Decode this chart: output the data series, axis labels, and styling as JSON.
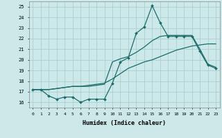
{
  "xlabel": "Humidex (Indice chaleur)",
  "xlim": [
    -0.5,
    23.5
  ],
  "ylim": [
    15.5,
    25.5
  ],
  "xticks": [
    0,
    1,
    2,
    3,
    4,
    5,
    6,
    7,
    8,
    9,
    10,
    11,
    12,
    13,
    14,
    15,
    16,
    17,
    18,
    19,
    20,
    21,
    22,
    23
  ],
  "yticks": [
    16,
    17,
    18,
    19,
    20,
    21,
    22,
    23,
    24,
    25
  ],
  "bg_color": "#cce8e8",
  "grid_color": "#aacece",
  "line_color": "#1a6b6b",
  "series1_x": [
    0,
    1,
    2,
    3,
    4,
    5,
    6,
    7,
    8,
    9,
    10,
    11,
    12,
    13,
    14,
    15,
    16,
    17,
    18,
    19,
    20,
    21,
    22,
    23
  ],
  "series1_y": [
    17.2,
    17.2,
    16.6,
    16.3,
    16.5,
    16.5,
    16.0,
    16.3,
    16.3,
    16.3,
    17.8,
    19.8,
    20.2,
    22.5,
    23.1,
    25.1,
    23.5,
    22.2,
    22.2,
    22.2,
    22.2,
    20.8,
    19.5,
    19.2
  ],
  "series2_x": [
    0,
    1,
    2,
    3,
    4,
    5,
    6,
    7,
    8,
    9,
    10,
    11,
    12,
    13,
    14,
    15,
    16,
    17,
    18,
    19,
    20,
    21,
    22,
    23
  ],
  "series2_y": [
    17.2,
    17.2,
    17.2,
    17.3,
    17.4,
    17.5,
    17.5,
    17.6,
    17.7,
    17.8,
    18.2,
    18.7,
    19.2,
    19.5,
    19.8,
    20.0,
    20.3,
    20.6,
    20.9,
    21.1,
    21.3,
    21.4,
    21.5,
    21.5
  ],
  "series3_x": [
    0,
    1,
    2,
    3,
    4,
    5,
    6,
    7,
    8,
    9,
    10,
    11,
    12,
    13,
    14,
    15,
    16,
    17,
    18,
    19,
    20,
    21,
    22,
    23
  ],
  "series3_y": [
    17.2,
    17.2,
    17.2,
    17.3,
    17.4,
    17.5,
    17.5,
    17.5,
    17.6,
    17.7,
    19.8,
    20.1,
    20.3,
    20.7,
    21.2,
    21.8,
    22.2,
    22.3,
    22.3,
    22.3,
    22.3,
    21.0,
    19.6,
    19.3
  ]
}
